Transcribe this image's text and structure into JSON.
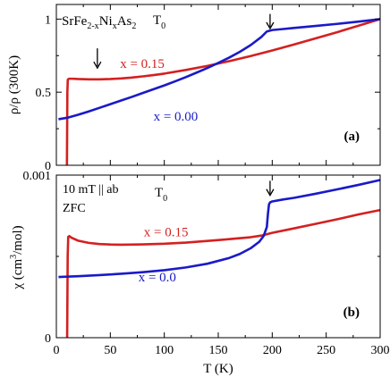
{
  "chart_data": [
    {
      "panel": "(a)",
      "type": "line",
      "title": "",
      "xlabel": "",
      "ylabel": "ρ/ρ (300K)",
      "xlim": [
        0,
        300
      ],
      "ylim": [
        0,
        1.1
      ],
      "x_ticks": [
        0,
        50,
        100,
        150,
        200,
        250,
        300
      ],
      "y_ticks": [
        0,
        0.5,
        1
      ],
      "y_tick_labels": [
        "0",
        "0.5",
        "1"
      ],
      "x_tick_labels_shown": false,
      "grid": false,
      "legend": "none",
      "compound": {
        "base": "SrFe",
        "s1": "2-x",
        "el2": "Ni",
        "s2": "x",
        "el3": "As",
        "s3": "2"
      },
      "panel_label": "(a)",
      "annotations": {
        "t0_base": "T",
        "t0_sub": "0"
      },
      "series": [
        {
          "name": "x = 0.15",
          "color": "#d42020",
          "x": [
            9.8,
            10.0,
            10.2,
            10.6,
            11.2,
            12,
            15,
            20,
            30,
            40,
            50,
            60,
            70,
            80,
            90,
            100,
            120,
            140,
            160,
            180,
            200,
            220,
            240,
            260,
            280,
            300
          ],
          "y": [
            0.0,
            0.25,
            0.5,
            0.585,
            0.59,
            0.592,
            0.592,
            0.59,
            0.588,
            0.588,
            0.59,
            0.594,
            0.6,
            0.608,
            0.617,
            0.627,
            0.652,
            0.68,
            0.712,
            0.747,
            0.785,
            0.826,
            0.868,
            0.91,
            0.955,
            1.0
          ]
        },
        {
          "name": "x = 0.00",
          "color": "#1a1ac8",
          "x": [
            2,
            10,
            20,
            30,
            40,
            50,
            60,
            70,
            80,
            90,
            100,
            110,
            120,
            130,
            140,
            150,
            160,
            170,
            180,
            190,
            195,
            200,
            210,
            220,
            240,
            260,
            280,
            300
          ],
          "y": [
            0.315,
            0.325,
            0.345,
            0.368,
            0.393,
            0.418,
            0.443,
            0.468,
            0.494,
            0.52,
            0.546,
            0.574,
            0.603,
            0.634,
            0.666,
            0.7,
            0.736,
            0.776,
            0.822,
            0.878,
            0.915,
            0.925,
            0.932,
            0.939,
            0.953,
            0.967,
            0.983,
            1.0
          ]
        }
      ],
      "labels": [
        {
          "text": "x = 0.15",
          "x": 59,
          "y": 0.665,
          "color": "#d42020"
        },
        {
          "text": "x = 0.00",
          "x": 90,
          "y": 0.305,
          "color": "#1a1ac8"
        }
      ],
      "arrows": [
        {
          "x": 38,
          "y_top": 0.8,
          "y_tip": 0.665
        },
        {
          "x": 198,
          "y_top": 1.035,
          "y_tip": 0.935
        }
      ]
    },
    {
      "panel": "(b)",
      "type": "line",
      "title": "",
      "xlabel": "T (K)",
      "ylabel": "χ (cm³/mol)",
      "ylabel_parts": {
        "a": "χ (cm",
        "sup": "3",
        "b": "/mol)"
      },
      "xlim": [
        0,
        300
      ],
      "ylim": [
        0,
        0.001
      ],
      "x_ticks": [
        0,
        50,
        100,
        150,
        200,
        250,
        300
      ],
      "x_tick_labels": [
        "0",
        "50",
        "100",
        "150",
        "200",
        "250",
        "300"
      ],
      "y_ticks": [
        0,
        0.001
      ],
      "y_tick_labels": [
        "0",
        "0.001"
      ],
      "grid": false,
      "legend": "none",
      "notes": [
        "10 mT || ab",
        "ZFC"
      ],
      "panel_label": "(b)",
      "annotations": {
        "t0_base": "T",
        "t0_sub": "0"
      },
      "series": [
        {
          "name": "x = 0.15",
          "color": "#d42020",
          "x": [
            10.0,
            10.2,
            10.5,
            11,
            12,
            14,
            20,
            30,
            40,
            50,
            60,
            80,
            100,
            120,
            140,
            160,
            180,
            190,
            200,
            220,
            240,
            260,
            280,
            300
          ],
          "y": [
            0.0,
            0.0002,
            0.0005,
            0.00062,
            0.000625,
            0.000615,
            0.000597,
            0.000583,
            0.000576,
            0.000573,
            0.000572,
            0.000574,
            0.000578,
            0.000585,
            0.000595,
            0.000606,
            0.000618,
            0.000628,
            0.000645,
            0.000672,
            0.0007,
            0.000728,
            0.000758,
            0.000785
          ]
        },
        {
          "name": "x = 0.0",
          "color": "#1a1ac8",
          "x": [
            2,
            20,
            40,
            60,
            80,
            100,
            120,
            140,
            160,
            170,
            180,
            188,
            192,
            195,
            196,
            197,
            198,
            200,
            210,
            220,
            240,
            260,
            280,
            300
          ],
          "y": [
            0.000373,
            0.000378,
            0.000385,
            0.000393,
            0.000403,
            0.000415,
            0.000432,
            0.000455,
            0.00049,
            0.000515,
            0.00055,
            0.00059,
            0.000625,
            0.00068,
            0.00076,
            0.00082,
            0.000832,
            0.000838,
            0.00085,
            0.00086,
            0.000885,
            0.000912,
            0.00094,
            0.00097
          ]
        }
      ],
      "labels": [
        {
          "text": "x = 0.15",
          "x": 81,
          "y": 0.000625,
          "color": "#d42020"
        },
        {
          "text": "x = 0.0",
          "x": 76,
          "y": 0.000345,
          "color": "#1a1ac8"
        }
      ],
      "arrows": [
        {
          "x": 198,
          "y_top": 0.000965,
          "y_tip": 0.000875
        }
      ]
    }
  ]
}
